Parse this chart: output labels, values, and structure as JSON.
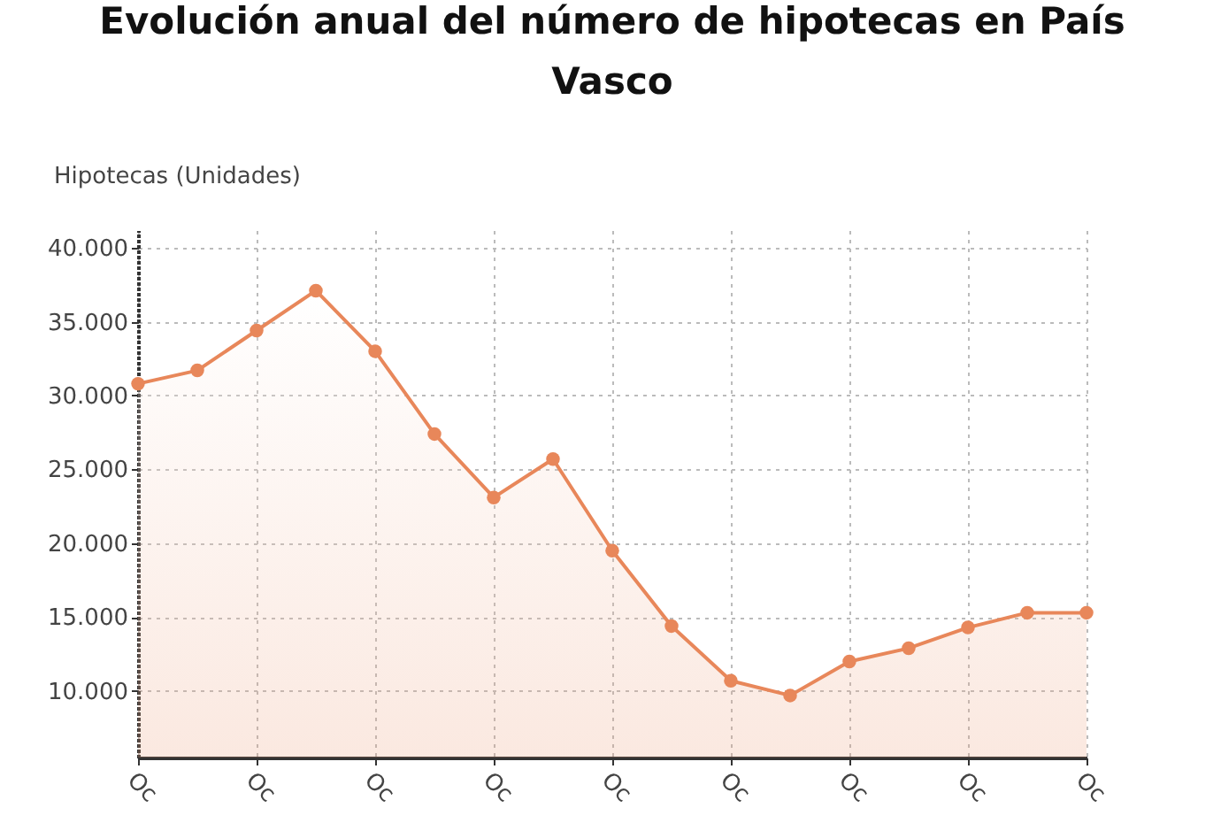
{
  "chart_data": {
    "type": "area",
    "title": "Evolución anual del número de hipotecas en País Vasco",
    "ylabel": "Hipotecas (Unidades)",
    "categories": [
      "Oc",
      null,
      "Oc",
      null,
      "Oc",
      null,
      "Oc",
      null,
      "Oc",
      null,
      "Oc",
      null,
      "Oc",
      null,
      "Oc",
      null,
      "Oc"
    ],
    "series": [
      {
        "color": "#e8875a",
        "values": [
          30800,
          31700,
          34400,
          37100,
          33000,
          27400,
          23100,
          25700,
          19500,
          14400,
          10700,
          9700,
          12000,
          12900,
          14300,
          15300,
          15300
        ]
      }
    ],
    "ylim": [
      5500,
      41200
    ],
    "yticks": [
      {
        "value": 10000,
        "label": "10.000"
      },
      {
        "value": 15000,
        "label": "15.000"
      },
      {
        "value": 20000,
        "label": "20.000"
      },
      {
        "value": 25000,
        "label": "25.000"
      },
      {
        "value": 30000,
        "label": "30.000"
      },
      {
        "value": 35000,
        "label": "35.000"
      },
      {
        "value": 40000,
        "label": "40.000"
      }
    ],
    "grid": true,
    "marker": "circle",
    "line_style": "solid"
  }
}
